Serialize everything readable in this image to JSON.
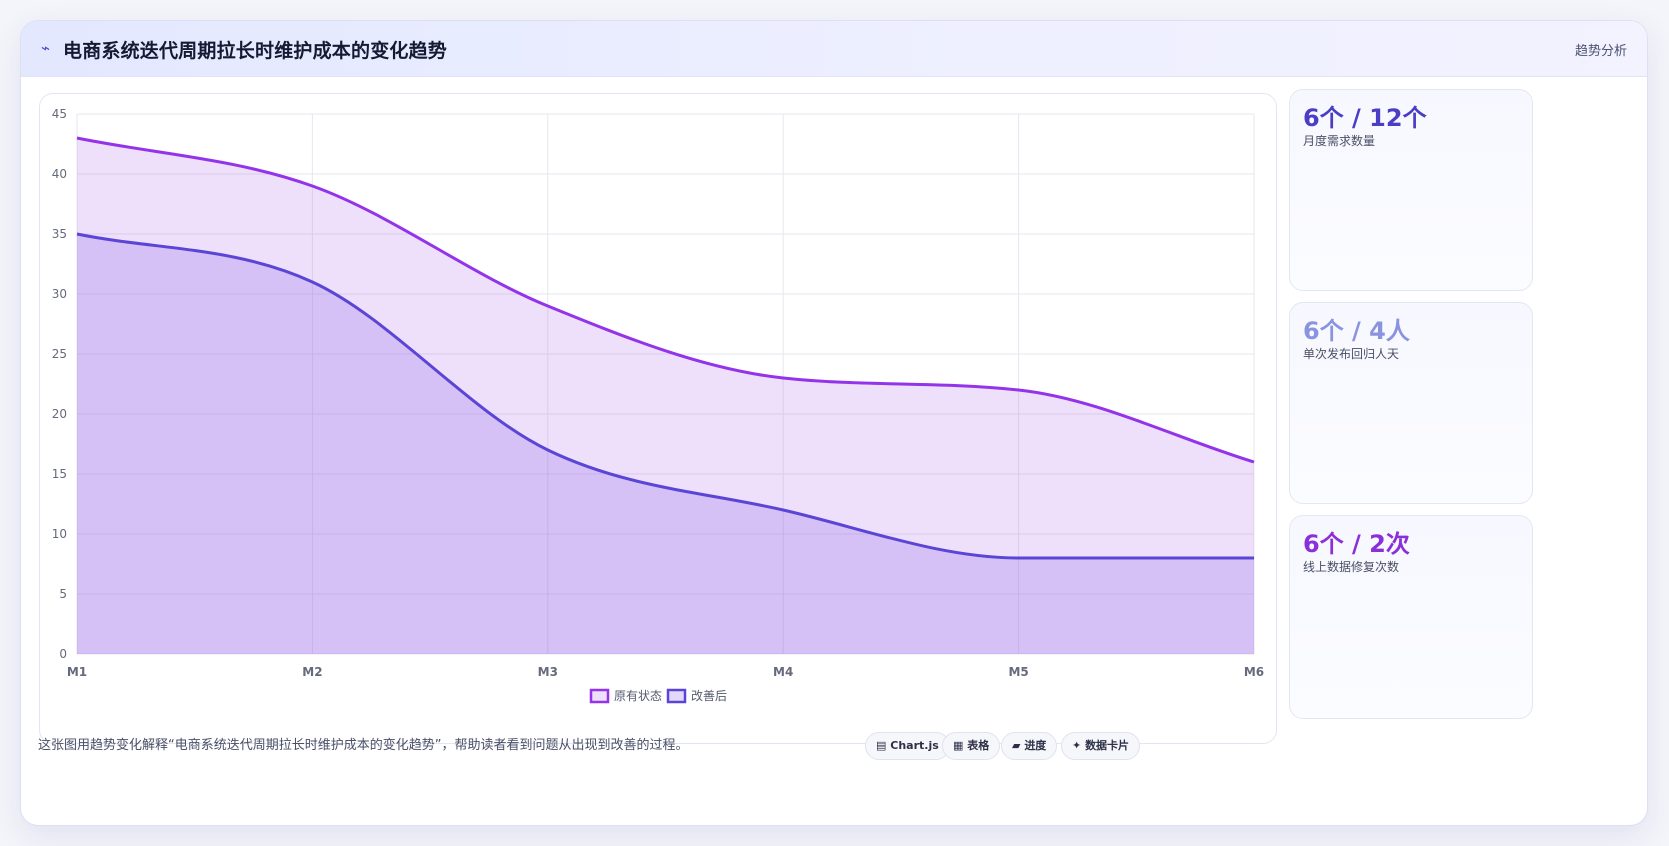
{
  "header": {
    "icon": "trend-line-icon",
    "title": "电商系统迭代周期拉长时维护成本的变化趋势",
    "tag": "趋势分析"
  },
  "chart_data": {
    "type": "area",
    "x": [
      "M1",
      "M2",
      "M3",
      "M4",
      "M5",
      "M6"
    ],
    "series": [
      {
        "name": "原有状态",
        "values": [
          43,
          39,
          29,
          23,
          22,
          16
        ],
        "color": "#9333ea"
      },
      {
        "name": "改善后",
        "values": [
          35,
          31,
          17,
          12,
          8,
          8
        ],
        "color": "#5b45d6"
      }
    ],
    "ylim": [
      0,
      45
    ],
    "yticks": [
      0,
      5,
      10,
      15,
      20,
      25,
      30,
      35,
      40,
      45
    ],
    "grid": true,
    "legend_position": "bottom",
    "smooth": true
  },
  "stats": [
    {
      "value": "6个 / 12个",
      "label": "月度需求数量",
      "color": "#4a3fc4"
    },
    {
      "value": "6个 / 4人",
      "label": "单次发布回归人天",
      "color": "#8a93e0"
    },
    {
      "value": "6个 / 2次",
      "label": "线上数据修复次数",
      "color": "#8b2fd9"
    }
  ],
  "footer": {
    "text": "这张图用趋势变化解释“电商系统迭代周期拉长时维护成本的变化趋势”，帮助读者看到问题从出现到改善的过程。",
    "pills": [
      {
        "icon": "chart-icon",
        "glyph": "▤",
        "label": "Chart.js"
      },
      {
        "icon": "table-icon",
        "glyph": "▦",
        "label": "表格"
      },
      {
        "icon": "progress-icon",
        "glyph": "▰",
        "label": "进度"
      },
      {
        "icon": "card-icon",
        "glyph": "✦",
        "label": "数据卡片"
      }
    ]
  }
}
